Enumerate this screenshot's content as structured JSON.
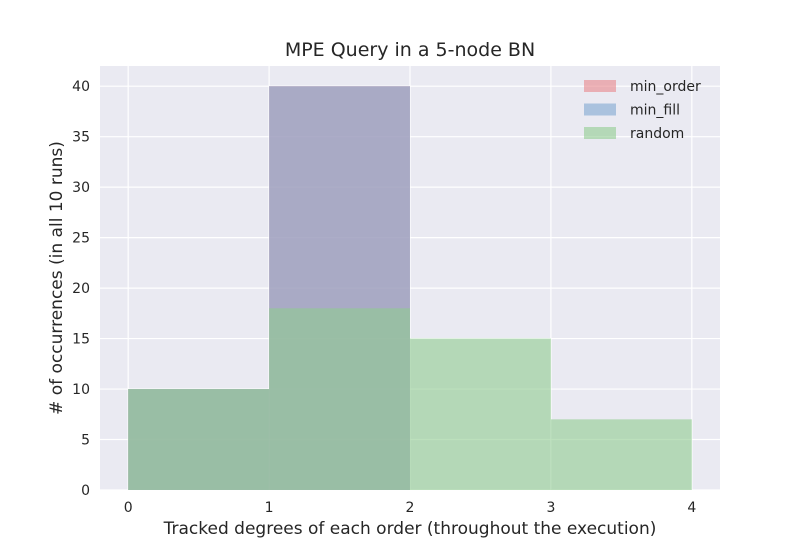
{
  "chart_data": {
    "type": "bar",
    "title": "MPE Query in a 5-node BN",
    "xlabel": "Tracked degrees of each order (throughout the execution)",
    "ylabel": "# of occurrences (in all 10 runs)",
    "xlim": [
      -0.2,
      4.2
    ],
    "ylim": [
      0,
      42
    ],
    "xticks": [
      0,
      1,
      2,
      3,
      4
    ],
    "yticks": [
      0,
      5,
      10,
      15,
      20,
      25,
      30,
      35,
      40
    ],
    "bin_edges": [
      0,
      1,
      2,
      3,
      4
    ],
    "grid": true,
    "legend_position": "top-right",
    "series": [
      {
        "name": "min_order",
        "color": "#e8868a",
        "opacity": 0.6,
        "values": [
          10,
          40,
          0,
          0
        ]
      },
      {
        "name": "min_fill",
        "color": "#7fa6d1",
        "opacity": 0.6,
        "values": [
          10,
          40,
          0,
          0
        ]
      },
      {
        "name": "random",
        "color": "#90cc90",
        "opacity": 0.6,
        "values": [
          10,
          18,
          15,
          7
        ]
      }
    ],
    "colors": {
      "background": "#eaeaf2",
      "grid": "#ffffff"
    }
  }
}
